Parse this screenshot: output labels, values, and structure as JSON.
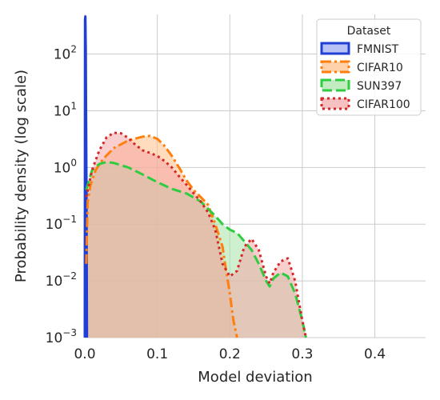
{
  "chart_data": {
    "type": "area",
    "title": "",
    "xlabel": "Model deviation",
    "ylabel": "Probability density (log scale)",
    "xlim": [
      0.0,
      0.47
    ],
    "ylim": [
      0.001,
      500
    ],
    "yscale": "log",
    "grid": true,
    "x_ticks": [
      {
        "value": 0.0,
        "label": "0.0"
      },
      {
        "value": 0.1,
        "label": "0.1"
      },
      {
        "value": 0.2,
        "label": "0.2"
      },
      {
        "value": 0.3,
        "label": "0.3"
      },
      {
        "value": 0.4,
        "label": "0.4"
      }
    ],
    "y_ticks": [
      {
        "value": 0.001,
        "base": "10",
        "exp": "−3"
      },
      {
        "value": 0.01,
        "base": "10",
        "exp": "−2"
      },
      {
        "value": 0.1,
        "base": "10",
        "exp": "−1"
      },
      {
        "value": 1,
        "base": "10",
        "exp": "0"
      },
      {
        "value": 10,
        "base": "10",
        "exp": "1"
      },
      {
        "value": 100,
        "base": "10",
        "exp": "2"
      }
    ],
    "legend": {
      "title": "Dataset",
      "placement": "top-right"
    },
    "series": [
      {
        "name": "FMNIST",
        "color": "#1f3fd6",
        "fill": "#9aa8ef",
        "dash": "solid",
        "points": [
          [
            0.0,
            0.001
          ],
          [
            0.0003,
            400
          ],
          [
            0.0008,
            460
          ],
          [
            0.0013,
            120
          ],
          [
            0.0018,
            8
          ],
          [
            0.0023,
            0.4
          ],
          [
            0.003,
            0.001
          ]
        ]
      },
      {
        "name": "CIFAR10",
        "color": "#ff7f0e",
        "fill": "#ffbf87",
        "dash": "dashdot",
        "points": [
          [
            0.002,
            0.02
          ],
          [
            0.004,
            0.25
          ],
          [
            0.008,
            0.5
          ],
          [
            0.015,
            0.9
          ],
          [
            0.025,
            1.4
          ],
          [
            0.04,
            2.2
          ],
          [
            0.06,
            3.0
          ],
          [
            0.08,
            3.5
          ],
          [
            0.09,
            3.6
          ],
          [
            0.1,
            3.2
          ],
          [
            0.11,
            2.4
          ],
          [
            0.12,
            1.6
          ],
          [
            0.13,
            1.0
          ],
          [
            0.14,
            0.6
          ],
          [
            0.15,
            0.4
          ],
          [
            0.16,
            0.3
          ],
          [
            0.17,
            0.22
          ],
          [
            0.18,
            0.1
          ],
          [
            0.19,
            0.04
          ],
          [
            0.195,
            0.015
          ],
          [
            0.2,
            0.006
          ],
          [
            0.205,
            0.002
          ],
          [
            0.21,
            0.001
          ]
        ]
      },
      {
        "name": "SUN397",
        "color": "#2ecc40",
        "fill": "#a8e3a8",
        "dash": "dashed",
        "points": [
          [
            0.002,
            0.4
          ],
          [
            0.01,
            0.9
          ],
          [
            0.02,
            1.15
          ],
          [
            0.03,
            1.25
          ],
          [
            0.04,
            1.2
          ],
          [
            0.06,
            1.0
          ],
          [
            0.08,
            0.75
          ],
          [
            0.1,
            0.55
          ],
          [
            0.12,
            0.42
          ],
          [
            0.14,
            0.35
          ],
          [
            0.16,
            0.25
          ],
          [
            0.18,
            0.14
          ],
          [
            0.19,
            0.1
          ],
          [
            0.2,
            0.08
          ],
          [
            0.21,
            0.07
          ],
          [
            0.22,
            0.05
          ],
          [
            0.23,
            0.035
          ],
          [
            0.24,
            0.02
          ],
          [
            0.25,
            0.01
          ],
          [
            0.255,
            0.008
          ],
          [
            0.26,
            0.011
          ],
          [
            0.27,
            0.014
          ],
          [
            0.28,
            0.012
          ],
          [
            0.29,
            0.006
          ],
          [
            0.3,
            0.002
          ],
          [
            0.305,
            0.001
          ]
        ]
      },
      {
        "name": "CIFAR100",
        "color": "#d62728",
        "fill": "#f4a6a6",
        "dash": "dotted",
        "points": [
          [
            0.002,
            0.3
          ],
          [
            0.01,
            0.9
          ],
          [
            0.02,
            2.0
          ],
          [
            0.03,
            3.4
          ],
          [
            0.04,
            4.1
          ],
          [
            0.05,
            4.0
          ],
          [
            0.06,
            3.3
          ],
          [
            0.07,
            2.5
          ],
          [
            0.08,
            2.0
          ],
          [
            0.09,
            1.8
          ],
          [
            0.1,
            1.6
          ],
          [
            0.11,
            1.3
          ],
          [
            0.12,
            1.0
          ],
          [
            0.13,
            0.7
          ],
          [
            0.14,
            0.5
          ],
          [
            0.15,
            0.35
          ],
          [
            0.16,
            0.25
          ],
          [
            0.17,
            0.16
          ],
          [
            0.18,
            0.08
          ],
          [
            0.19,
            0.02
          ],
          [
            0.2,
            0.012
          ],
          [
            0.21,
            0.015
          ],
          [
            0.22,
            0.04
          ],
          [
            0.23,
            0.055
          ],
          [
            0.24,
            0.035
          ],
          [
            0.25,
            0.012
          ],
          [
            0.255,
            0.009
          ],
          [
            0.26,
            0.014
          ],
          [
            0.27,
            0.022
          ],
          [
            0.28,
            0.025
          ],
          [
            0.29,
            0.01
          ],
          [
            0.3,
            0.002
          ],
          [
            0.305,
            0.001
          ]
        ]
      }
    ]
  }
}
